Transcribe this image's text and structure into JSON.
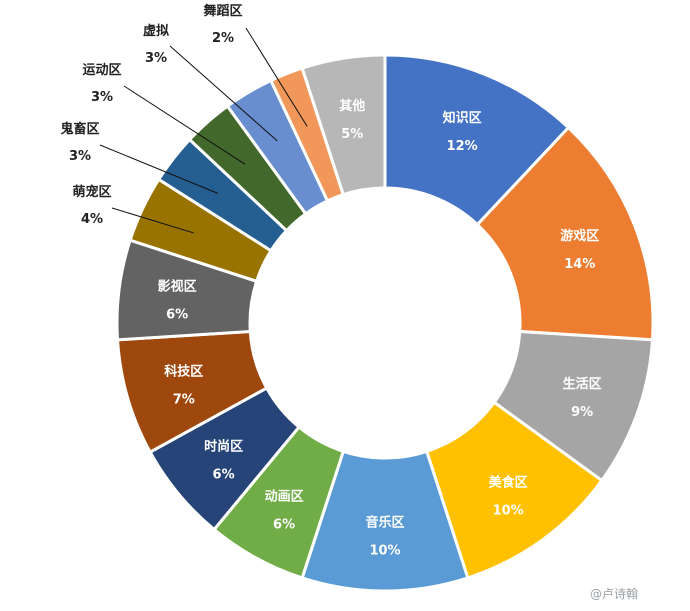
{
  "chart_data": {
    "type": "pie",
    "title": "",
    "slices": [
      {
        "label": "知识区",
        "percent_label": "12%",
        "value": 12,
        "color": "#4472C4",
        "label_pos": "inside"
      },
      {
        "label": "游戏区",
        "percent_label": "14%",
        "value": 14,
        "color": "#ED7D31",
        "label_pos": "inside"
      },
      {
        "label": "生活区",
        "percent_label": "9%",
        "value": 9,
        "color": "#A5A5A5",
        "label_pos": "inside"
      },
      {
        "label": "美食区",
        "percent_label": "10%",
        "value": 10,
        "color": "#FFC000",
        "label_pos": "inside"
      },
      {
        "label": "音乐区",
        "percent_label": "10%",
        "value": 10,
        "color": "#5B9BD5",
        "label_pos": "inside"
      },
      {
        "label": "动画区",
        "percent_label": "6%",
        "value": 6,
        "color": "#70AD47",
        "label_pos": "inside"
      },
      {
        "label": "时尚区",
        "percent_label": "6%",
        "value": 6,
        "color": "#264478",
        "label_pos": "inside"
      },
      {
        "label": "科技区",
        "percent_label": "7%",
        "value": 7,
        "color": "#9E480E",
        "label_pos": "inside"
      },
      {
        "label": "影视区",
        "percent_label": "6%",
        "value": 6,
        "color": "#636363",
        "label_pos": "inside"
      },
      {
        "label": "萌宠区",
        "percent_label": "4%",
        "value": 4,
        "color": "#997300",
        "label_pos": "outside"
      },
      {
        "label": "鬼畜区",
        "percent_label": "3%",
        "value": 3,
        "color": "#255E91",
        "label_pos": "outside"
      },
      {
        "label": "运动区",
        "percent_label": "3%",
        "value": 3,
        "color": "#43682B",
        "label_pos": "outside"
      },
      {
        "label": "虚拟",
        "percent_label": "3%",
        "value": 3,
        "color": "#698ED0",
        "label_pos": "outside"
      },
      {
        "label": "舞蹈区",
        "percent_label": "2%",
        "value": 2,
        "color": "#F1975A",
        "label_pos": "outside"
      },
      {
        "label": "其他",
        "percent_label": "5%",
        "value": 5,
        "color": "#B7B7B7",
        "label_pos": "inside"
      }
    ]
  },
  "watermark": "@卢诗翰"
}
